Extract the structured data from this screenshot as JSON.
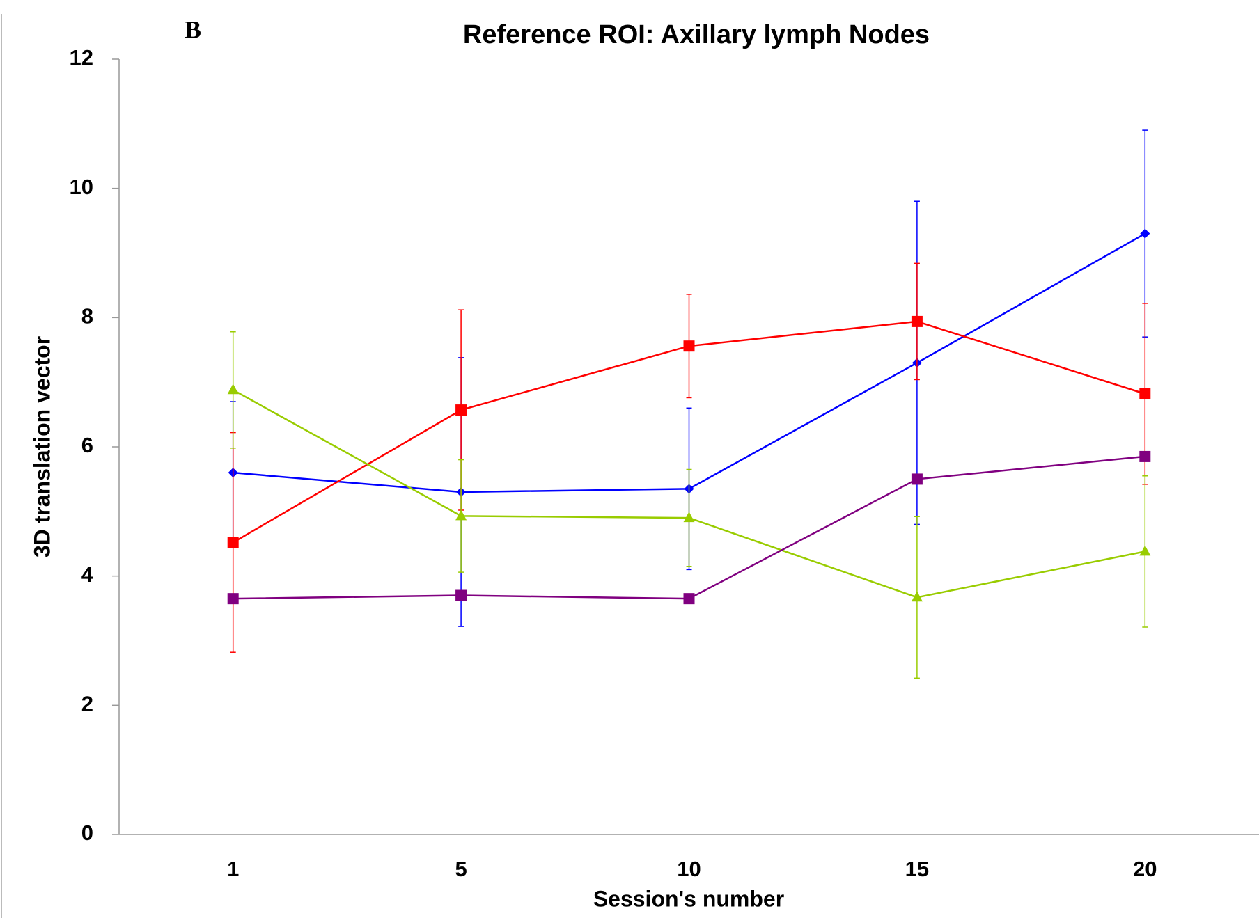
{
  "chart_data": {
    "type": "line",
    "panel_label": "B",
    "title": "Reference ROI: Axillary lymph Nodes",
    "x_label": "Session's number",
    "y_label": "3D translation vector",
    "categories": [
      "1",
      "5",
      "10",
      "15",
      "20"
    ],
    "ylim": [
      0,
      12
    ],
    "yticks": [
      0,
      2,
      4,
      6,
      8,
      10,
      12
    ],
    "series": [
      {
        "color": "#0000ff",
        "marker": "diamond",
        "values": [
          5.6,
          5.3,
          5.35,
          7.3,
          9.3
        ],
        "errors": [
          1.1,
          2.08,
          1.25,
          2.5,
          1.6
        ]
      },
      {
        "color": "#ff0000",
        "marker": "square",
        "values": [
          4.52,
          6.57,
          7.56,
          7.94,
          6.82
        ],
        "errors": [
          1.7,
          1.55,
          0.8,
          0.9,
          1.4
        ]
      },
      {
        "color": "#99cc00",
        "marker": "triangle",
        "values": [
          6.88,
          4.93,
          4.9,
          3.67,
          4.38
        ],
        "errors": [
          0.9,
          0.87,
          0.75,
          1.25,
          1.17
        ]
      },
      {
        "color": "#800080",
        "marker": "square",
        "values": [
          3.65,
          3.7,
          3.65,
          5.5,
          5.85
        ]
      }
    ]
  }
}
